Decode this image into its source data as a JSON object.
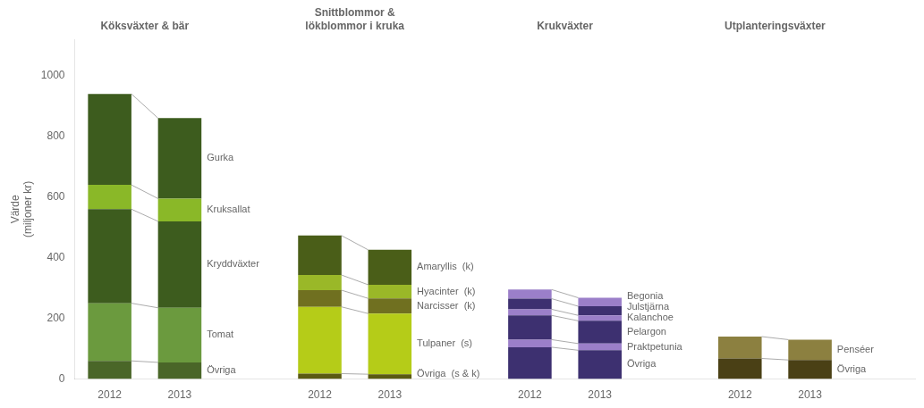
{
  "chart_data": {
    "type": "bar",
    "stacked": true,
    "grid": false,
    "ylabel": "Värde\n(miljoner kr)",
    "ylim": [
      0,
      1120
    ],
    "yticks": [
      0,
      200,
      400,
      600,
      800,
      1000
    ],
    "groups": [
      {
        "title": "Köksväxter & bär",
        "categories": [
          "2012",
          "2013"
        ],
        "series": [
          {
            "name": "Övriga",
            "color": "#4a6628",
            "values": [
              60,
              55
            ]
          },
          {
            "name": "Tomat",
            "color": "#6b9a3e",
            "values": [
              190,
              180
            ]
          },
          {
            "name": "Kryddväxter",
            "color": "#3d5c1e",
            "values": [
              310,
              285
            ]
          },
          {
            "name": "Kruksallat",
            "color": "#8ab828",
            "values": [
              80,
              75
            ]
          },
          {
            "name": "Gurka",
            "color": "#3d5c1e",
            "values": [
              300,
              265
            ]
          }
        ]
      },
      {
        "title": "Snittblommor &\nlökblommor i kruka",
        "categories": [
          "2012",
          "2013"
        ],
        "series": [
          {
            "name": "Övriga  (s & k)",
            "color": "#5a5a12",
            "values": [
              18,
              16
            ]
          },
          {
            "name": "Tulpaner  (s)",
            "color": "#b5cc18",
            "values": [
              220,
              200
            ]
          },
          {
            "name": "Narcisser  (k)",
            "color": "#707020",
            "values": [
              55,
              50
            ]
          },
          {
            "name": "Hyacinter  (k)",
            "color": "#9ab828",
            "values": [
              50,
              45
            ]
          },
          {
            "name": "Amaryllis  (k)",
            "color": "#4a5e18",
            "values": [
              130,
              115
            ]
          }
        ]
      },
      {
        "title": "Krukväxter",
        "categories": [
          "2012",
          "2013"
        ],
        "series": [
          {
            "name": "Övriga",
            "color": "#3d3070",
            "values": [
              105,
              95
            ]
          },
          {
            "name": "Praktpetunia",
            "color": "#9b7fc9",
            "values": [
              25,
              22
            ]
          },
          {
            "name": "Pelargon",
            "color": "#3d3070",
            "values": [
              80,
              75
            ]
          },
          {
            "name": "Kalanchoe",
            "color": "#9b7fc9",
            "values": [
              20,
              18
            ]
          },
          {
            "name": "Julstjärna",
            "color": "#3d3070",
            "values": [
              35,
              30
            ]
          },
          {
            "name": "Begonia",
            "color": "#9b7fc9",
            "values": [
              30,
              28
            ]
          }
        ]
      },
      {
        "title": "Utplanteringsväxter",
        "categories": [
          "2012",
          "2013"
        ],
        "series": [
          {
            "name": "Övriga",
            "color": "#4a4015",
            "values": [
              68,
              63
            ]
          },
          {
            "name": "Penséer",
            "color": "#8c8040",
            "values": [
              72,
              67
            ]
          }
        ]
      }
    ]
  }
}
